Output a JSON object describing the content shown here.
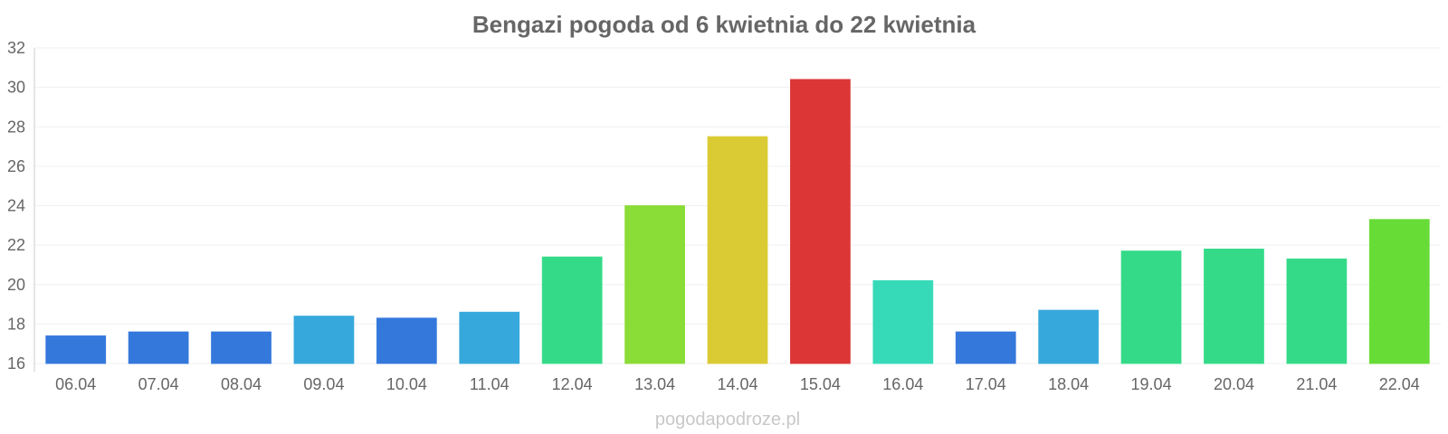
{
  "chart_data": {
    "type": "bar",
    "title": "Bengazi pogoda od 6 kwietnia do 22 kwietnia",
    "xlabel": "",
    "ylabel": "",
    "categories": [
      "06.04",
      "07.04",
      "08.04",
      "09.04",
      "10.04",
      "11.04",
      "12.04",
      "13.04",
      "14.04",
      "15.04",
      "16.04",
      "17.04",
      "18.04",
      "19.04",
      "20.04",
      "21.04",
      "22.04"
    ],
    "values": [
      17.4,
      17.6,
      17.6,
      18.4,
      18.3,
      18.6,
      21.4,
      24.0,
      27.5,
      30.4,
      20.2,
      17.6,
      18.7,
      21.7,
      21.8,
      21.3,
      23.3
    ],
    "colors": [
      "#3478dc",
      "#3478dc",
      "#3478dc",
      "#36a8dc",
      "#3478dc",
      "#36a8dc",
      "#34da88",
      "#8adc36",
      "#dacb34",
      "#dc3636",
      "#36dab8",
      "#3478dc",
      "#36a8dc",
      "#34da88",
      "#34da88",
      "#34da88",
      "#68dc36"
    ],
    "ylim": [
      16,
      32
    ],
    "yticks": [
      16,
      18,
      20,
      22,
      24,
      26,
      28,
      30,
      32
    ],
    "grid": true,
    "legend": "none"
  },
  "footer": {
    "text": "pogodapodroze.pl"
  }
}
